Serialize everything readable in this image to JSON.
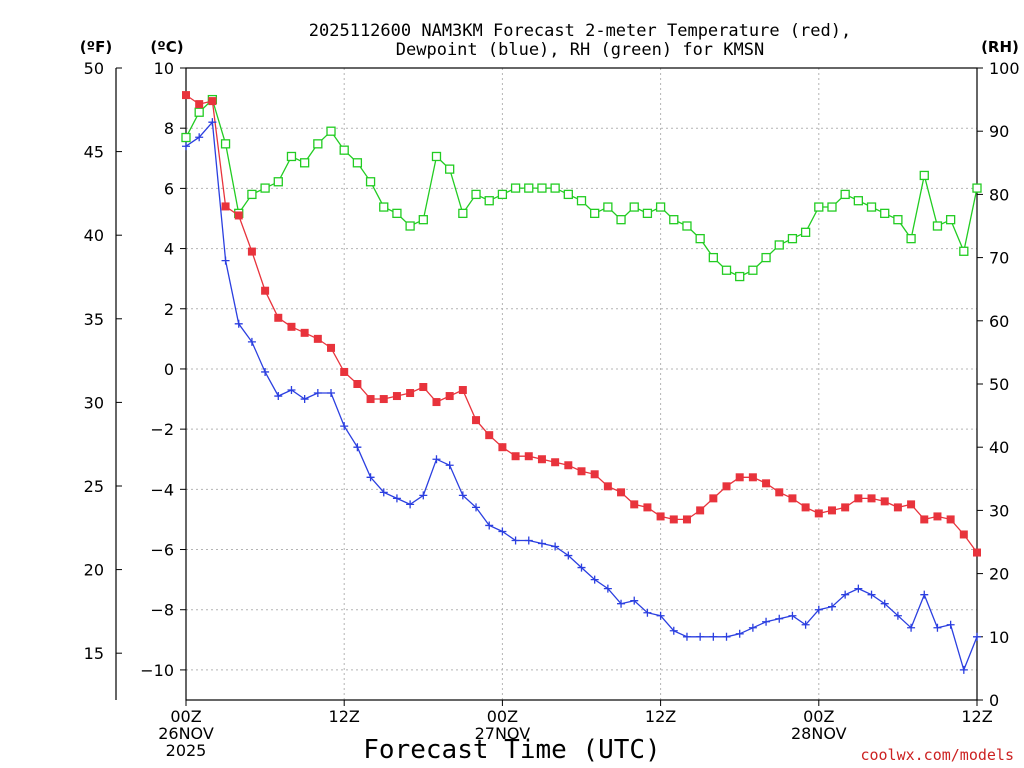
{
  "chart_data": {
    "type": "line",
    "title_lines": [
      "2025112600 NAM3KM Forecast 2-meter Temperature (red),",
      "Dewpoint (blue), RH (green) for KMSN"
    ],
    "xlabel": "Forecast Time (UTC)",
    "credit": "coolwx.com/models",
    "units": {
      "left_outer": "(ºF)",
      "left_inner": "(ºC)",
      "right": "(RH)"
    },
    "x_range_hours": [
      0,
      60
    ],
    "x_ticks": [
      {
        "hour": 0,
        "lines": [
          "00Z",
          "26NOV",
          "2025"
        ]
      },
      {
        "hour": 12,
        "lines": [
          "12Z"
        ]
      },
      {
        "hour": 24,
        "lines": [
          "00Z",
          "27NOV"
        ]
      },
      {
        "hour": 36,
        "lines": [
          "12Z"
        ]
      },
      {
        "hour": 48,
        "lines": [
          "00Z",
          "28NOV"
        ]
      },
      {
        "hour": 60,
        "lines": [
          "12Z"
        ]
      }
    ],
    "y_left_celsius": {
      "range": [
        -11,
        10
      ],
      "ticks": [
        "10",
        "8",
        "6",
        "4",
        "2",
        "0",
        "−2",
        "−4",
        "−6",
        "−8",
        "−10"
      ]
    },
    "y_left_fahrenheit": {
      "ticks": [
        "50",
        "45",
        "40",
        "35",
        "30",
        "25",
        "20",
        "15"
      ]
    },
    "y_right_rh": {
      "range": [
        0,
        100
      ],
      "ticks": [
        "100",
        "90",
        "80",
        "70",
        "60",
        "50",
        "40",
        "30",
        "20",
        "10",
        "0"
      ]
    },
    "grid": true,
    "x_hours": [
      0,
      1,
      2,
      3,
      4,
      5,
      6,
      7,
      8,
      9,
      10,
      11,
      12,
      13,
      14,
      15,
      16,
      17,
      18,
      19,
      20,
      21,
      22,
      23,
      24,
      25,
      26,
      27,
      28,
      29,
      30,
      31,
      32,
      33,
      34,
      35,
      36,
      37,
      38,
      39,
      40,
      41,
      42,
      43,
      44,
      45,
      46,
      47,
      48,
      49,
      50,
      51,
      52,
      53,
      54,
      55,
      56,
      57,
      58,
      59,
      60
    ],
    "series": [
      {
        "name": "Temperature",
        "unit": "°C",
        "axis": "left",
        "color": "#e8333c",
        "marker": "filled-square",
        "values": [
          9.1,
          8.8,
          8.9,
          5.4,
          5.1,
          3.9,
          2.6,
          1.7,
          1.4,
          1.2,
          1.0,
          0.7,
          -0.1,
          -0.5,
          -1.0,
          -1.0,
          -0.9,
          -0.8,
          -0.6,
          -1.1,
          -0.9,
          -0.7,
          -1.7,
          -2.2,
          -2.6,
          -2.9,
          -2.9,
          -3.0,
          -3.1,
          -3.2,
          -3.4,
          -3.5,
          -3.9,
          -4.1,
          -4.5,
          -4.6,
          -4.9,
          -5.0,
          -5.0,
          -4.7,
          -4.3,
          -3.9,
          -3.6,
          -3.6,
          -3.8,
          -4.1,
          -4.3,
          -4.6,
          -4.8,
          -4.7,
          -4.6,
          -4.3,
          -4.3,
          -4.4,
          -4.6,
          -4.5,
          -5.0,
          -4.9,
          -5.0,
          -5.5,
          -6.1
        ]
      },
      {
        "name": "Dewpoint",
        "unit": "°C",
        "axis": "left",
        "color": "#2b3fe0",
        "marker": "plus",
        "values": [
          7.4,
          7.7,
          8.2,
          3.6,
          1.5,
          0.9,
          -0.1,
          -0.9,
          -0.7,
          -1.0,
          -0.8,
          -0.8,
          -1.9,
          -2.6,
          -3.6,
          -4.1,
          -4.3,
          -4.5,
          -4.2,
          -3.0,
          -3.2,
          -4.2,
          -4.6,
          -5.2,
          -5.4,
          -5.7,
          -5.7,
          -5.8,
          -5.9,
          -6.2,
          -6.6,
          -7.0,
          -7.3,
          -7.8,
          -7.7,
          -8.1,
          -8.2,
          -8.7,
          -8.9,
          -8.9,
          -8.9,
          -8.9,
          -8.8,
          -8.6,
          -8.4,
          -8.3,
          -8.2,
          -8.5,
          -8.0,
          -7.9,
          -7.5,
          -7.3,
          -7.5,
          -7.8,
          -8.2,
          -8.6,
          -7.5,
          -8.6,
          -8.5,
          -10.0,
          -8.9
        ]
      },
      {
        "name": "Relative Humidity",
        "unit": "%",
        "axis": "right",
        "color": "#22cc22",
        "marker": "open-square",
        "values": [
          89,
          93,
          95,
          88,
          77,
          80,
          81,
          82,
          86,
          85,
          88,
          90,
          87,
          85,
          82,
          78,
          77,
          75,
          76,
          86,
          84,
          77,
          80,
          79,
          80,
          81,
          81,
          81,
          81,
          80,
          79,
          77,
          78,
          76,
          78,
          77,
          78,
          76,
          75,
          73,
          70,
          68,
          67,
          68,
          70,
          72,
          73,
          74,
          78,
          78,
          80,
          79,
          78,
          77,
          76,
          73,
          83,
          75,
          76,
          71,
          81
        ]
      }
    ]
  }
}
